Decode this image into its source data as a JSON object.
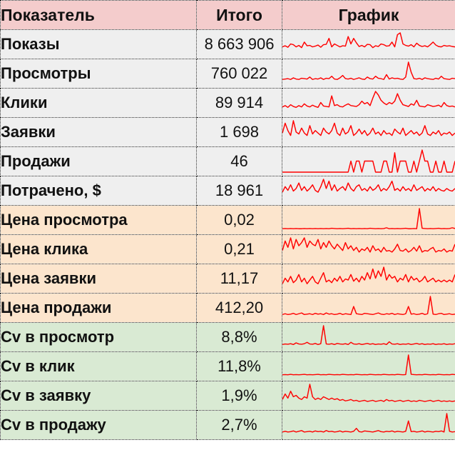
{
  "header": {
    "metric": "Показатель",
    "total": "Итого",
    "chart": "График"
  },
  "colors": {
    "header_bg": "#f4cccc",
    "base_bg": "#efefef",
    "price_bg": "#fce5cd",
    "cv_bg": "#d9ead3",
    "spark_line": "#ff0000"
  },
  "rows": [
    {
      "label": "Показы",
      "total": "8 663 906",
      "group": "base",
      "spark": [
        22,
        25,
        21,
        30,
        28,
        22,
        26,
        20,
        35,
        25,
        26,
        22,
        24,
        27,
        21,
        28,
        29,
        45,
        22,
        30,
        26,
        22,
        25,
        24,
        50,
        30,
        45,
        33,
        23,
        26,
        22,
        29,
        28,
        20,
        25,
        23,
        30,
        28,
        24,
        25,
        35,
        22,
        55,
        60,
        30,
        26,
        24,
        28,
        22,
        32,
        26,
        23,
        25,
        22,
        28,
        35,
        27,
        23,
        22,
        26,
        24,
        25,
        23,
        22
      ]
    },
    {
      "label": "Просмотры",
      "total": "760 022",
      "group": "base",
      "spark": [
        12,
        13,
        14,
        12,
        16,
        13,
        12,
        15,
        14,
        13,
        18,
        12,
        14,
        13,
        16,
        12,
        15,
        14,
        20,
        13,
        12,
        16,
        22,
        14,
        13,
        15,
        12,
        14,
        16,
        13,
        12,
        18,
        14,
        13,
        20,
        15,
        14,
        12,
        24,
        13,
        16,
        14,
        15,
        13,
        12,
        18,
        55,
        30,
        14,
        13,
        15,
        12,
        16,
        14,
        13,
        12,
        15,
        13,
        20,
        14,
        13,
        12,
        15,
        14
      ]
    },
    {
      "label": "Клики",
      "total": "89 914",
      "group": "base",
      "spark": [
        15,
        18,
        14,
        20,
        16,
        14,
        18,
        15,
        22,
        17,
        15,
        19,
        16,
        14,
        25,
        17,
        16,
        15,
        40,
        18,
        20,
        16,
        15,
        19,
        22,
        18,
        17,
        16,
        20,
        28,
        22,
        25,
        18,
        35,
        50,
        42,
        30,
        24,
        20,
        25,
        22,
        28,
        45,
        30,
        20,
        18,
        16,
        22,
        19,
        30,
        17,
        16,
        15,
        20,
        18,
        16,
        17,
        19,
        15,
        25,
        18,
        16,
        17,
        15
      ]
    },
    {
      "label": "Заявки",
      "total": "1 698",
      "group": "base",
      "spark": [
        20,
        40,
        25,
        15,
        45,
        22,
        18,
        30,
        20,
        15,
        35,
        18,
        25,
        20,
        15,
        30,
        22,
        18,
        25,
        40,
        20,
        15,
        30,
        18,
        22,
        35,
        15,
        20,
        28,
        18,
        25,
        15,
        20,
        30,
        18,
        22,
        15,
        25,
        18,
        20,
        15,
        28,
        22,
        18,
        30,
        15,
        20,
        25,
        18,
        22,
        15,
        20,
        35,
        18,
        15,
        22,
        18,
        25,
        15,
        20,
        18,
        22,
        15,
        20
      ]
    },
    {
      "label": "Продажи",
      "total": "46",
      "group": "base",
      "spark": [
        0,
        0,
        0,
        0,
        0,
        0,
        0,
        0,
        0,
        0,
        0,
        0,
        0,
        0,
        0,
        0,
        0,
        0,
        0,
        0,
        0,
        0,
        0,
        0,
        0,
        40,
        0,
        40,
        40,
        0,
        40,
        40,
        40,
        40,
        0,
        0,
        0,
        40,
        40,
        0,
        0,
        70,
        0,
        40,
        40,
        40,
        0,
        0,
        40,
        0,
        40,
        80,
        40,
        40,
        0,
        0,
        40,
        0,
        0,
        40,
        0,
        0,
        0,
        40
      ]
    },
    {
      "label": "Потрачено, $",
      "total": "18 961",
      "group": "base",
      "spark": [
        25,
        40,
        30,
        45,
        28,
        35,
        50,
        30,
        40,
        28,
        35,
        45,
        30,
        25,
        40,
        60,
        35,
        55,
        30,
        45,
        28,
        35,
        40,
        30,
        50,
        35,
        28,
        40,
        45,
        30,
        35,
        28,
        40,
        30,
        35,
        45,
        28,
        35,
        30,
        40,
        55,
        30,
        35,
        28,
        40,
        30,
        35,
        28,
        45,
        30,
        35,
        40,
        28,
        35,
        30,
        40,
        28,
        35,
        30,
        28,
        35,
        30,
        28,
        35
      ]
    },
    {
      "label": "Цена просмотра",
      "total": "0,02",
      "group": "price",
      "spark": [
        8,
        9,
        8,
        9,
        8,
        9,
        8,
        8,
        9,
        8,
        9,
        8,
        9,
        8,
        9,
        8,
        9,
        8,
        10,
        9,
        8,
        9,
        8,
        9,
        10,
        8,
        9,
        8,
        9,
        8,
        9,
        8,
        10,
        9,
        8,
        9,
        8,
        9,
        12,
        8,
        9,
        8,
        9,
        8,
        9,
        10,
        8,
        8,
        9,
        8,
        90,
        10,
        9,
        8,
        9,
        8,
        9,
        10,
        8,
        9,
        8,
        9,
        12,
        9
      ]
    },
    {
      "label": "Цена клика",
      "total": "0,21",
      "group": "price",
      "spark": [
        30,
        60,
        40,
        70,
        35,
        65,
        45,
        55,
        70,
        40,
        60,
        50,
        45,
        65,
        35,
        55,
        40,
        60,
        45,
        35,
        50,
        40,
        30,
        55,
        35,
        45,
        30,
        40,
        25,
        35,
        30,
        40,
        25,
        45,
        30,
        35,
        25,
        40,
        28,
        30,
        25,
        35,
        50,
        30,
        28,
        35,
        25,
        30,
        40,
        28,
        45,
        25,
        30,
        28,
        35,
        40,
        25,
        30,
        28,
        35,
        25,
        30,
        28,
        50
      ]
    },
    {
      "label": "Цена заявки",
      "total": "11,17",
      "group": "price",
      "spark": [
        15,
        30,
        20,
        35,
        18,
        25,
        40,
        20,
        30,
        15,
        25,
        35,
        20,
        15,
        30,
        45,
        20,
        25,
        18,
        30,
        22,
        35,
        20,
        28,
        25,
        40,
        22,
        30,
        20,
        35,
        25,
        45,
        28,
        55,
        30,
        50,
        35,
        60,
        25,
        40,
        30,
        35,
        20,
        30,
        25,
        40,
        20,
        35,
        25,
        30,
        20,
        25,
        35,
        20,
        25,
        30,
        20,
        25,
        20,
        25,
        20,
        25,
        20,
        40
      ]
    },
    {
      "label": "Цена продажи",
      "total": "412,20",
      "group": "price",
      "spark": [
        10,
        12,
        10,
        11,
        13,
        10,
        12,
        14,
        10,
        11,
        12,
        10,
        13,
        11,
        12,
        10,
        14,
        11,
        12,
        10,
        11,
        13,
        10,
        12,
        11,
        10,
        30,
        12,
        11,
        10,
        13,
        12,
        11,
        10,
        12,
        14,
        11,
        10,
        12,
        11,
        13,
        10,
        12,
        11,
        10,
        12,
        30,
        11,
        12,
        10,
        11,
        13,
        10,
        12,
        55,
        11,
        10,
        12,
        13,
        10,
        11,
        12,
        10,
        11
      ]
    },
    {
      "label": "Cv в просмотр",
      "total": "8,8%",
      "group": "cv",
      "spark": [
        12,
        14,
        13,
        15,
        12,
        18,
        14,
        13,
        15,
        20,
        14,
        13,
        16,
        12,
        15,
        80,
        14,
        13,
        15,
        12,
        16,
        14,
        13,
        15,
        12,
        20,
        14,
        13,
        15,
        12,
        14,
        16,
        13,
        15,
        12,
        14,
        13,
        15,
        12,
        22,
        14,
        13,
        15,
        12,
        14,
        13,
        15,
        12,
        14,
        16,
        13,
        15,
        12,
        14,
        13,
        15,
        12,
        14,
        13,
        15,
        12,
        14,
        13,
        15
      ]
    },
    {
      "label": "Cv в клик",
      "total": "11,8%",
      "group": "cv",
      "spark": [
        10,
        11,
        10,
        12,
        10,
        11,
        10,
        11,
        12,
        10,
        11,
        10,
        11,
        12,
        10,
        11,
        10,
        12,
        11,
        10,
        11,
        10,
        12,
        11,
        10,
        11,
        10,
        12,
        11,
        10,
        11,
        10,
        12,
        11,
        10,
        11,
        10,
        12,
        11,
        10,
        11,
        10,
        12,
        11,
        10,
        11,
        95,
        12,
        11,
        10,
        11,
        10,
        12,
        11,
        10,
        11,
        10,
        12,
        11,
        10,
        11,
        10,
        12,
        11
      ]
    },
    {
      "label": "Cv в заявку",
      "total": "1,9%",
      "group": "cv",
      "spark": [
        25,
        45,
        30,
        55,
        35,
        40,
        30,
        25,
        35,
        30,
        80,
        35,
        25,
        30,
        25,
        35,
        30,
        25,
        30,
        25,
        28,
        22,
        25,
        20,
        22,
        25,
        20,
        22,
        18,
        20,
        22,
        18,
        20,
        22,
        18,
        20,
        22,
        18,
        25,
        20,
        22,
        18,
        20,
        22,
        18,
        20,
        22,
        18,
        20,
        18,
        22,
        20,
        18,
        20,
        22,
        18,
        20,
        22,
        18,
        20,
        18,
        20,
        18,
        20
      ]
    },
    {
      "label": "Cv в продажу",
      "total": "2,7%",
      "group": "cv",
      "spark": [
        10,
        12,
        10,
        11,
        13,
        10,
        12,
        14,
        10,
        11,
        12,
        10,
        13,
        11,
        12,
        10,
        14,
        11,
        12,
        10,
        11,
        13,
        10,
        12,
        11,
        10,
        12,
        20,
        11,
        10,
        13,
        12,
        11,
        10,
        12,
        14,
        11,
        10,
        12,
        11,
        13,
        10,
        12,
        11,
        10,
        12,
        40,
        11,
        12,
        10,
        11,
        13,
        10,
        12,
        11,
        10,
        12,
        11,
        13,
        10,
        60,
        12,
        10,
        11
      ]
    }
  ]
}
